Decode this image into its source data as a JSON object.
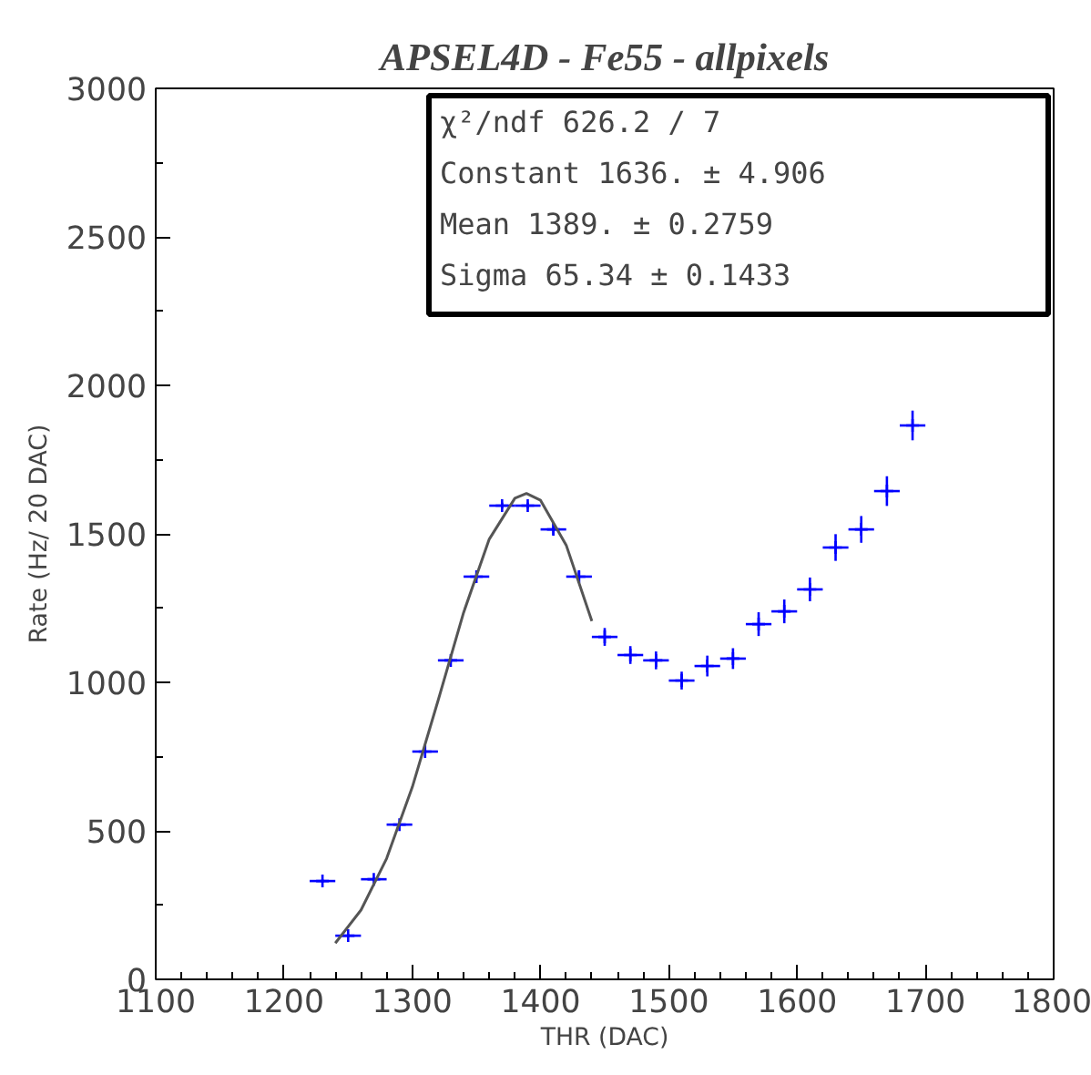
{
  "chart_data": {
    "type": "scatter",
    "title": "APSEL4D - Fe55 - allpixels",
    "xlabel": "THR (DAC)",
    "ylabel": "Rate (Hz/ 20 DAC)",
    "annotations": [
      "χ²/ndf 626.2  /   7",
      "Constant    1636. ±     4.906",
      "Mean        1389. ±    0.2759",
      "Sigma       65.34 ±    0.1433"
    ],
    "xlim": [
      1100,
      1800
    ],
    "xticks": [
      1100,
      1200,
      1300,
      1400,
      1500,
      1600,
      1700,
      1800
    ],
    "ylim": [
      0,
      3000
    ],
    "yticks": [
      0,
      500,
      1000,
      1500,
      2000,
      2500,
      3000
    ],
    "grid": false,
    "series": [
      {
        "color": "#0000ff",
        "marker": "cross",
        "x": [
          1230,
          1250,
          1270,
          1290,
          1310,
          1330,
          1350,
          1370,
          1390,
          1410,
          1430,
          1450,
          1470,
          1490,
          1510,
          1530,
          1550,
          1570,
          1590,
          1610,
          1630,
          1650,
          1670,
          1690
        ],
        "values": [
          331,
          147,
          337,
          521,
          767,
          1074,
          1356,
          1595,
          1595,
          1515,
          1356,
          1153,
          1092,
          1074,
          1006,
          1055,
          1080,
          1196,
          1239,
          1313,
          1454,
          1515,
          1644,
          1865
        ],
        "xerrors": [
          10,
          10,
          10,
          10,
          10,
          10,
          10,
          10,
          10,
          10,
          10,
          10,
          10,
          10,
          10,
          10,
          10,
          10,
          10,
          10,
          10,
          10,
          10,
          10
        ],
        "errors": [
          5,
          5,
          5,
          5,
          5,
          5,
          10,
          10,
          10,
          20,
          20,
          30,
          30,
          30,
          30,
          35,
          35,
          40,
          40,
          40,
          45,
          45,
          50,
          50
        ]
      },
      {
        "type": "line",
        "color": "#555555",
        "x": [
          1240,
          1260,
          1280,
          1300,
          1320,
          1340,
          1360,
          1380,
          1389,
          1400,
          1420,
          1440
        ],
        "values": [
          122,
          233,
          407,
          647,
          937,
          1235,
          1482,
          1620,
          1636,
          1613,
          1462,
          1206
        ]
      }
    ]
  }
}
